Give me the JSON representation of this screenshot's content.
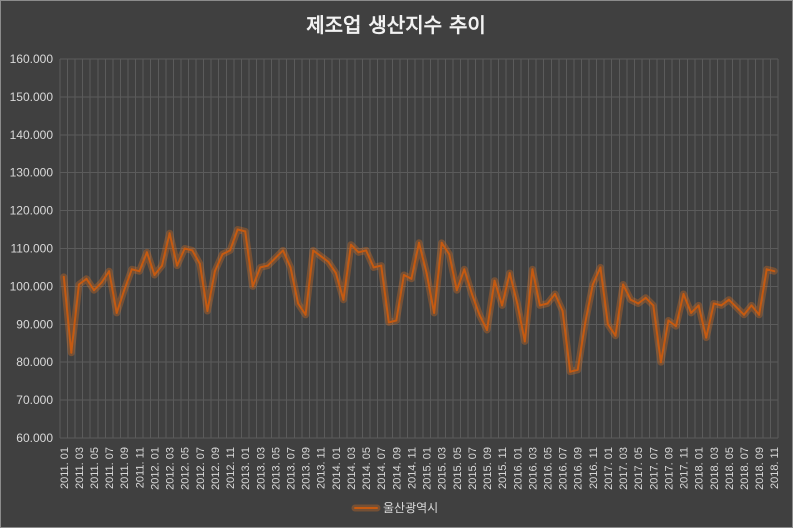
{
  "chart_data": {
    "type": "line",
    "title": "제조업 생산지수 추이",
    "ylim": [
      60,
      160
    ],
    "grid": true,
    "legend": "bottom",
    "ytick_labels": [
      "160.000",
      "150.000",
      "140.000",
      "130.000",
      "120.000",
      "110.000",
      "100.000",
      "90.000",
      "80.000",
      "70.000",
      "60.000"
    ],
    "xtick_labels": [
      "2011. 01",
      "2011. 03",
      "2011. 05",
      "2011. 07",
      "2011. 09",
      "2011. 11",
      "2012. 01",
      "2012. 03",
      "2012. 05",
      "2012. 07",
      "2012. 09",
      "2012. 11",
      "2013. 01",
      "2013. 03",
      "2013. 05",
      "2013. 07",
      "2013. 09",
      "2013. 11",
      "2014. 01",
      "2014. 03",
      "2014. 05",
      "2014. 07",
      "2014. 09",
      "2014. 11",
      "2015. 01",
      "2015. 03",
      "2015. 05",
      "2015. 07",
      "2015. 09",
      "2015. 11",
      "2016. 01",
      "2016. 03",
      "2016. 05",
      "2016. 07",
      "2016. 09",
      "2016. 11",
      "2017. 01",
      "2017. 03",
      "2017. 05",
      "2017. 07",
      "2017. 09",
      "2017. 11",
      "2018. 01",
      "2018. 03",
      "2018. 05",
      "2018. 07",
      "2018. 09",
      "2018. 11"
    ],
    "series": [
      {
        "name": "울산광역시",
        "color": "#c55a11",
        "values": [
          102.5,
          82.5,
          100.5,
          102.0,
          99.0,
          101.0,
          104.0,
          93.0,
          99.0,
          104.5,
          104.0,
          109.0,
          103.0,
          105.5,
          114.0,
          105.5,
          110.0,
          109.5,
          106.0,
          93.5,
          104.0,
          108.5,
          109.5,
          115.0,
          114.5,
          100.0,
          105.0,
          105.5,
          107.5,
          109.5,
          105.0,
          95.5,
          92.5,
          109.5,
          108.0,
          106.5,
          103.5,
          96.5,
          111.0,
          109.0,
          109.5,
          105.0,
          105.5,
          90.5,
          91.0,
          103.0,
          102.0,
          111.5,
          103.5,
          93.0,
          111.5,
          108.5,
          99.0,
          104.5,
          98.0,
          92.5,
          88.5,
          101.5,
          95.0,
          103.5,
          95.5,
          85.5,
          104.5,
          95.0,
          95.5,
          98.0,
          93.5,
          77.5,
          78.0,
          90.5,
          100.5,
          105.0,
          90.0,
          87.0,
          100.5,
          96.5,
          95.5,
          97.0,
          95.0,
          80.0,
          91.0,
          89.5,
          98.0,
          93.0,
          95.0,
          86.5,
          95.5,
          95.0,
          96.5,
          94.5,
          92.5,
          95.0,
          92.5,
          104.5,
          104.0
        ]
      }
    ]
  }
}
